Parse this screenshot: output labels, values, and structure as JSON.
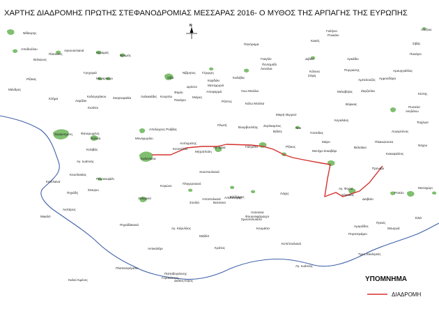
{
  "title": "ΧΑΡΤΗΣ ΔΙΑΔΡΟΜΗΣ ΠΡΩΤΗΣ ΣΤΕΦΑΝΟΔΡΟΜΙΑΣ ΜΕΣΣΑΡΑΣ 2016- Ο ΜΥΘΟΣ ΤΗΣ ΑΡΠΑΓΗΣ ΤΗΣ ΕΥΡΩΠΗΣ",
  "compass_label": "N",
  "legend": {
    "title": "ΥΠΟΜΝΗΜΑ",
    "route_label": "ΔΙΑΔΡΟΜΗ",
    "route_color": "#d3302c"
  },
  "colors": {
    "settlement_fill": "#7fbf6f",
    "coast_line": "#3d5fa8",
    "route": "#d3302c"
  },
  "places": [
    "Νίθαυρης",
    "Αποδούλου",
    "Πλατανος",
    "Αγκουσελιανά",
    "Βολιώνες",
    "Βαθιακό",
    "Κεραμιές",
    "Βελιμός",
    "Ρίζικας",
    "Μάνδρες",
    "Γρηγοριά",
    "Μαγαρικάρι",
    "Κερασία",
    "Νίβρητος",
    "Γέργερη",
    "Σίβα",
    "Δρόσοι",
    "Καρδάκι",
    "Μεσοχωριό",
    "Κλήμα",
    "Λαμπιώτες",
    "Αγ. Βαρβάρα",
    "Πλουσκιανά",
    "Κλήμα",
    "Λαρζάκι",
    "Καλογεράκου",
    "Λαλακιάδες",
    "Κουρτίω",
    "Φαρίο",
    "Αποφορμά",
    "Άνω Μούλια",
    "Άγ. Βαρβάρα",
    "Κισάτοι",
    "Πανάγιο",
    "Σκορτοφαλία",
    "Κάτω Μούλια",
    "Ράπτες",
    "Μοίρες",
    "Πλωτή",
    "Βουρβουλίτης",
    "Ζερόκαμπος",
    "Βάλιτς",
    "Νοκ",
    "Άτοπιδας",
    "Κεραλάνη",
    "Λυγορτύνος",
    "Ζαρφοσμένη",
    "Φανερωμένη",
    "Βόλισα",
    "Κολιβάς",
    "Μαυροπουλοι",
    "Μονοχωρίου",
    "Απολυχνος Ροάβας",
    "Ιγκέτο",
    "Αυτόγματης",
    "Κεοστέλλο",
    "Αγ. Δέκα",
    "Μητρόπολη",
    "Γάλγαπο",
    "Ρίζικος",
    "Μάρο",
    "Μετόχα Ζοκοβάρι",
    "Βελεάκιο",
    "Πλακιώτισσα",
    "Νόχου",
    "Κακοφαλέος",
    "Προνάρι",
    "Αγ. Ιωάννης",
    "Καλέσιανα",
    "Κεκέλιανα",
    "Πετροκεφάλι",
    "Πηγάδη",
    "Κουσλακίας",
    "Σταυρω",
    "Χουστουλιανά",
    "Πληγερσιανό",
    "Αποστολιανά",
    "Λαλαρειό",
    "Κορώνο",
    "Σουλία",
    "Απατανομης",
    "Βατσανα",
    "Μηθόσ",
    "Ελιξλάρος",
    "Σμυσονουκέλο",
    "Φουρνοφάραγγο",
    "Λούσανα",
    "Κουμάσα",
    "Αγ. Φωτιά",
    "Χάρακας",
    "Διαβαίο",
    "Λόχης",
    "Ροπάν",
    "Αμυράδος",
    "Πρινές",
    "Μουργιά",
    "Ελιά",
    "Πορτσηκάμιο",
    "Τρεις Εκκλησιές",
    "Λιστάρος",
    "Πηγαδάκιανά",
    "Μικαλό",
    "Αγ. Κάρυλλος",
    "Κράτος",
    "Αντικαλάρι",
    "Κεπέτουλιανά",
    "Αγ. Ιωάννης",
    "Πλατανορέματα",
    "Παπαδογιάννης",
    "Γερακάτικος",
    "Διάκος",
    "Λόρος",
    "Καλοί Λιμένες",
    "Γαλήνιο",
    "Ρουκάνι",
    "Κακός",
    "Διβάκι",
    "Αρκάδιο",
    "Κόλενα",
    "Σύψη",
    "Πανάγιο",
    "Αμουργιάλλες",
    "Αλέξιου",
    "Σιβάς",
    "Βόρικας",
    "Κίστης",
    "Πυσσάσ",
    "Πανόραμα",
    "Πυργιώτης",
    "Αμμουδάρα",
    "Μελαβηίας",
    "Ζαρζούλα",
    "Ακηλάνω",
    "Τοιχλιωτ",
    "Καλύβια",
    "Αμπελουζός",
    "Μικρή Θερρού",
    "Μεσοχώρι",
    "Γκαγλίο",
    "Λιονάνα",
    "Πενταμόδι"
  ]
}
